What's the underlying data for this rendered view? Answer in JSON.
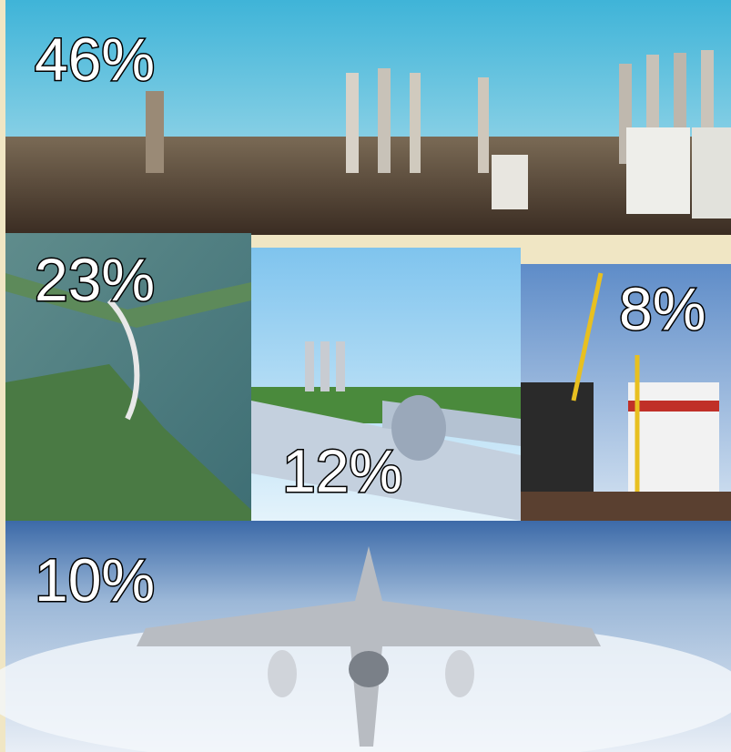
{
  "tiles": [
    {
      "label": "46%"
    },
    {
      "label": "23%"
    },
    {
      "label": "12%"
    },
    {
      "label": "8%"
    },
    {
      "label": "10%"
    }
  ]
}
